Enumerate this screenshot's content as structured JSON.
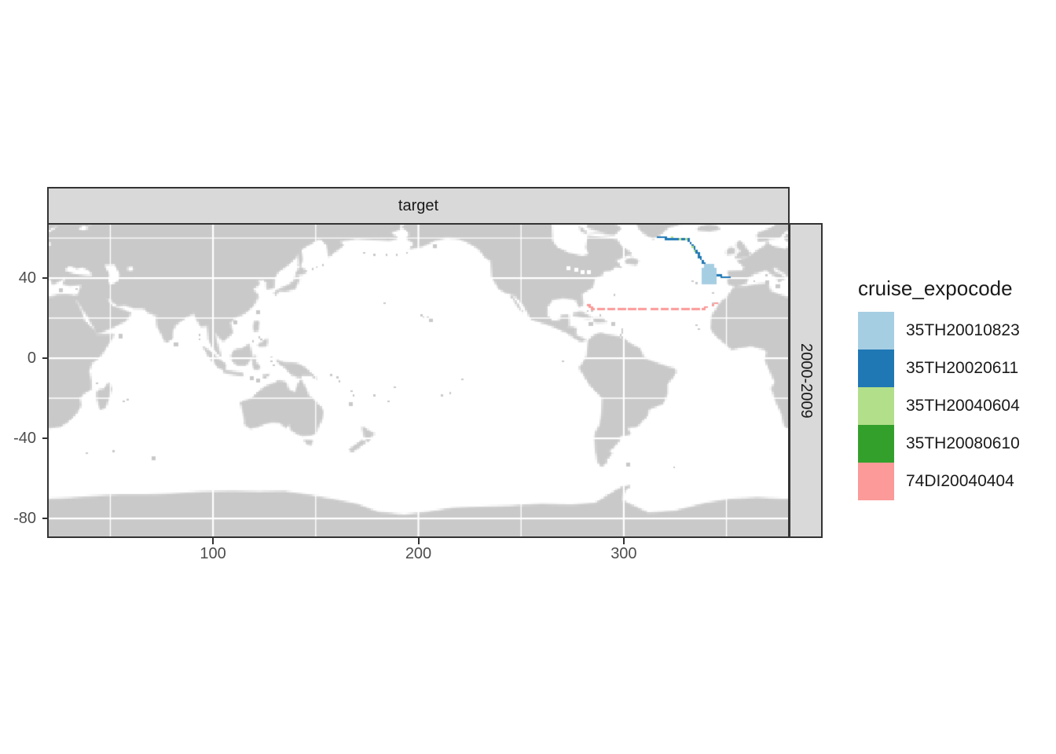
{
  "window": {
    "background": "#ffffff"
  },
  "facets": {
    "column_label": "target",
    "row_label": "2000-2009"
  },
  "colors": {
    "strip_fill": "#d9d9d9",
    "strip_border": "#333333",
    "panel_border": "#333333",
    "land": "#c9c9c9",
    "ocean": "#ffffff",
    "gridline": "#ffffff",
    "tick": "#333333",
    "axis_text": "#4d4d4d",
    "text": "#1a1a1a"
  },
  "axes": {
    "x": {
      "ticks": [
        "100",
        "200",
        "300"
      ],
      "tick_values": [
        100,
        200,
        300
      ],
      "minor_values": [
        50,
        150,
        250,
        350
      ]
    },
    "y": {
      "ticks": [
        "40",
        "0",
        "-40",
        "-80"
      ],
      "tick_values": [
        40,
        0,
        -40,
        -80
      ],
      "minor_values": [
        60,
        20,
        -20,
        -60
      ]
    }
  },
  "legend": {
    "title": "cruise_expocode",
    "entries": [
      {
        "label": "35TH20010823",
        "color": "#A6CEE3"
      },
      {
        "label": "35TH20020611",
        "color": "#1F78B4"
      },
      {
        "label": "35TH20040604",
        "color": "#B2DF8A"
      },
      {
        "label": "35TH20080610",
        "color": "#33A02C"
      },
      {
        "label": "74DI20040404",
        "color": "#FB9A99"
      }
    ]
  },
  "chart_data": {
    "type": "scatter",
    "subtype": "map-cruise-tracks",
    "facet_column": "target",
    "facet_row": "2000-2009",
    "projection": {
      "lon_domain": [
        20,
        380
      ],
      "lat_domain": [
        -89,
        66.7
      ]
    },
    "x_ticks": [
      100,
      200,
      300
    ],
    "y_ticks": [
      40,
      0,
      -40,
      -80
    ],
    "x_minor_gridlines": [
      50,
      150,
      250,
      350
    ],
    "y_minor_gridlines": [
      60,
      20,
      -20,
      -60
    ],
    "legend_title": "cruise_expocode",
    "series": [
      {
        "name": "35TH20010823",
        "color": "#A6CEE3",
        "style": "filled-grid",
        "grids": [
          {
            "lon": [
              -22.3,
              -16.0
            ],
            "lat": [
              38.4,
              45.0
            ]
          },
          {
            "lon": [
              -21.2,
              -17.4
            ],
            "lat": [
              45.0,
              46.6
            ]
          }
        ]
      },
      {
        "name": "35TH20020611",
        "color": "#1F78B4",
        "style": "line-dots",
        "points": [
          [
            -44.0,
            60.8
          ],
          [
            -36.0,
            60.2
          ],
          [
            -29.3,
            59.7
          ],
          [
            -27.4,
            57.3
          ],
          [
            -25.5,
            54.5
          ],
          [
            -23.6,
            51.4
          ],
          [
            -21.7,
            48.2
          ],
          [
            -19.8,
            45.5
          ],
          [
            -17.9,
            43.1
          ],
          [
            -16.0,
            42.0
          ],
          [
            -14.1,
            41.6
          ],
          [
            -9.1,
            41.2
          ]
        ]
      },
      {
        "name": "35TH20040604",
        "color": "#B2DF8A",
        "style": "dots",
        "points": [
          [
            -37.4,
            61.2
          ],
          [
            -33.1,
            60.1
          ],
          [
            -30.5,
            60.0
          ],
          [
            -27.2,
            55.6
          ],
          [
            -26.2,
            53.8
          ]
        ]
      },
      {
        "name": "35TH20080610",
        "color": "#33A02C",
        "style": "dots",
        "points": [
          [
            -30.0,
            59.9
          ],
          [
            -26.0,
            53.6
          ],
          [
            -22.5,
            49.5
          ]
        ]
      },
      {
        "name": "74DI20040404",
        "color": "#FB9A99",
        "style": "dashed-dots",
        "points": [
          [
            -77.9,
            26.9
          ],
          [
            -75.2,
            25.1
          ],
          [
            -70.0,
            24.9
          ],
          [
            -55.0,
            24.9
          ],
          [
            -40.0,
            25.0
          ],
          [
            -27.4,
            25.1
          ],
          [
            -21.7,
            25.2
          ],
          [
            -19.8,
            26.3
          ],
          [
            -16.7,
            27.5
          ],
          [
            -13.2,
            28.4
          ]
        ]
      }
    ],
    "draw_order": [
      "35TH20080610",
      "35TH20020611",
      "35TH20040604",
      "74DI20040404",
      "35TH20010823"
    ]
  }
}
